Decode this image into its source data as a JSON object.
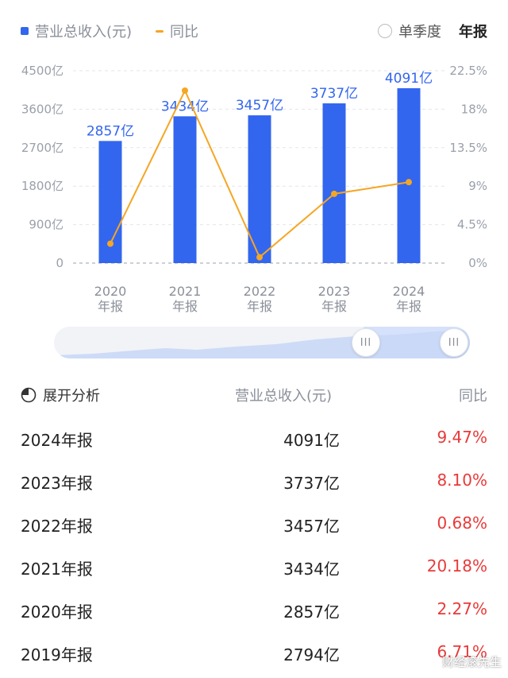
{
  "legend": {
    "revenue_label": "营业总收入(元)",
    "yoy_label": "同比",
    "revenue_color": "#3366ee",
    "yoy_color": "#f5a623"
  },
  "period_toggle": {
    "quarterly_label": "单季度",
    "annual_label": "年报",
    "selected": "annual"
  },
  "chart_data": {
    "type": "bar",
    "categories": [
      "2020\n年报",
      "2021\n年报",
      "2022\n年报",
      "2023\n年报",
      "2024\n年报"
    ],
    "series": [
      {
        "name": "营业总收入(元)",
        "type": "bar",
        "axis": "left",
        "values": [
          2857,
          3434,
          3457,
          3737,
          4091
        ],
        "labels": [
          "2857亿",
          "3434亿",
          "3457亿",
          "3737亿",
          "4091亿"
        ]
      },
      {
        "name": "同比",
        "type": "line",
        "axis": "right",
        "values": [
          2.27,
          20.18,
          0.68,
          8.1,
          9.47
        ]
      }
    ],
    "left_axis": {
      "ticks": [
        "0",
        "900亿",
        "1800亿",
        "2700亿",
        "3600亿",
        "4500亿"
      ],
      "ylim": [
        0,
        4500
      ]
    },
    "right_axis": {
      "ticks": [
        "0%",
        "4.5%",
        "9%",
        "13.5%",
        "18%",
        "22.5%"
      ],
      "ylim": [
        0,
        22.5
      ]
    },
    "grid": true
  },
  "table": {
    "header": {
      "expand": "展开分析",
      "revenue": "营业总收入(元)",
      "yoy": "同比"
    },
    "rows": [
      {
        "year": "2024年报",
        "revenue": "4091亿",
        "yoy": "9.47%"
      },
      {
        "year": "2023年报",
        "revenue": "3737亿",
        "yoy": "8.10%"
      },
      {
        "year": "2022年报",
        "revenue": "3457亿",
        "yoy": "0.68%"
      },
      {
        "year": "2021年报",
        "revenue": "3434亿",
        "yoy": "20.18%"
      },
      {
        "year": "2020年报",
        "revenue": "2857亿",
        "yoy": "2.27%"
      },
      {
        "year": "2019年报",
        "revenue": "2794亿",
        "yoy": "6.71%"
      }
    ]
  },
  "watermark": "财经滚先生"
}
